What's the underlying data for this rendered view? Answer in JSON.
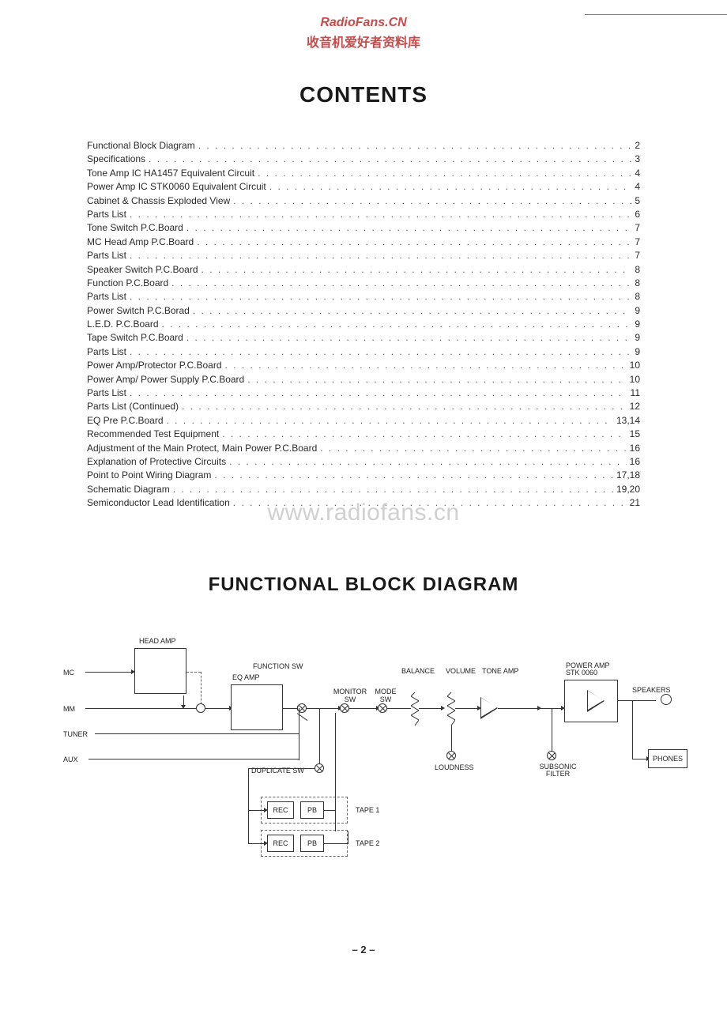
{
  "header": {
    "site_en": "RadioFans.CN",
    "site_cn": "收音机爱好者资料库"
  },
  "contents_title": "CONTENTS",
  "watermark": "www.radiofans.cn",
  "section2_title": "FUNCTIONAL BLOCK DIAGRAM",
  "footer_page": "– 2 –",
  "toc": [
    {
      "label": "Functional Block Diagram",
      "page": "2"
    },
    {
      "label": "Specifications",
      "page": "3"
    },
    {
      "label": "Tone Amp IC HA1457 Equivalent Circuit",
      "page": "4"
    },
    {
      "label": "Power Amp IC STK0060 Equivalent Circuit",
      "page": "4"
    },
    {
      "label": "Cabinet & Chassis Exploded View",
      "page": "5"
    },
    {
      "label": "Parts List",
      "page": "6"
    },
    {
      "label": "Tone Switch P.C.Board",
      "page": "7"
    },
    {
      "label": "MC Head Amp P.C.Board",
      "page": "7"
    },
    {
      "label": "Parts List",
      "page": "7"
    },
    {
      "label": "Speaker Switch P.C.Board",
      "page": "8"
    },
    {
      "label": "Function P.C.Board",
      "page": "8"
    },
    {
      "label": "Parts List",
      "page": "8"
    },
    {
      "label": "Power Switch P.C.Borad",
      "page": "9"
    },
    {
      "label": "L.E.D. P.C.Board",
      "page": "9"
    },
    {
      "label": "Tape Switch P.C.Board",
      "page": "9"
    },
    {
      "label": "Parts List",
      "page": "9"
    },
    {
      "label": "Power Amp/Protector P.C.Board",
      "page": "10"
    },
    {
      "label": "Power Amp/ Power Supply P.C.Board",
      "page": "10"
    },
    {
      "label": "Parts List",
      "page": "11"
    },
    {
      "label": "Parts List (Continued)",
      "page": "12"
    },
    {
      "label": "EQ Pre P.C.Board",
      "page": "13,14"
    },
    {
      "label": "Recommended Test Equipment",
      "page": "15"
    },
    {
      "label": "Adjustment of the Main Protect, Main Power P.C.Board",
      "page": "16"
    },
    {
      "label": "Explanation of Protective Circuits",
      "page": "16"
    },
    {
      "label": "Point to Point Wiring Diagram",
      "page": "17,18"
    },
    {
      "label": "Schematic Diagram",
      "page": "19,20"
    },
    {
      "label": "Semiconductor Lead Identification",
      "page": "21"
    }
  ],
  "diagram": {
    "type": "flowchart",
    "background_color": "#ffffff",
    "line_color": "#333333",
    "text_color": "#222222",
    "font_size_pt": 7,
    "inputs": [
      "MC",
      "MM",
      "TUNER",
      "AUX"
    ],
    "blocks": {
      "head_amp": "HEAD AMP",
      "eq_amp": "EQ AMP",
      "function_sw": "FUNCTION SW",
      "monitor_sw": "MONITOR\nSW",
      "mode_sw": "MODE\nSW",
      "balance": "BALANCE",
      "volume": "VOLUME",
      "tone_amp": "TONE AMP",
      "power_amp": "POWER AMP\nSTK 0060",
      "speakers": "SPEAKERS",
      "phones": "PHONES",
      "loudness": "LOUDNESS",
      "subsonic_filter": "SUBSONIC\nFILTER",
      "duplicate_sw": "DUPLICATE SW",
      "tape1": "TAPE 1",
      "tape2": "TAPE 2",
      "rec": "REC",
      "pb": "PB"
    }
  }
}
